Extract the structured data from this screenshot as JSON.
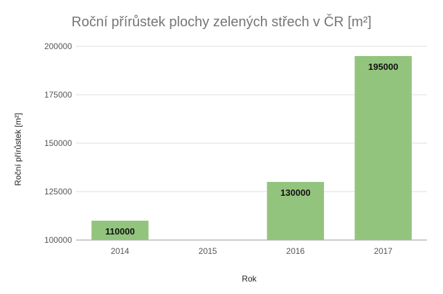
{
  "chart_data": {
    "type": "bar",
    "title": "Roční přírůstek plochy zelených střech v ČR [m²]",
    "xlabel": "Rok",
    "ylabel": "Roční přírůstek [m²]",
    "categories": [
      "2014",
      "2015",
      "2016",
      "2017"
    ],
    "values": [
      110000,
      null,
      130000,
      195000
    ],
    "data_labels": [
      "110000",
      "",
      "130000",
      "195000"
    ],
    "ylim": [
      100000,
      200000
    ],
    "yticks": [
      "100000",
      "125000",
      "150000",
      "175000",
      "200000"
    ],
    "grid": true,
    "legend": "none",
    "bar_color": "#93c47d"
  }
}
